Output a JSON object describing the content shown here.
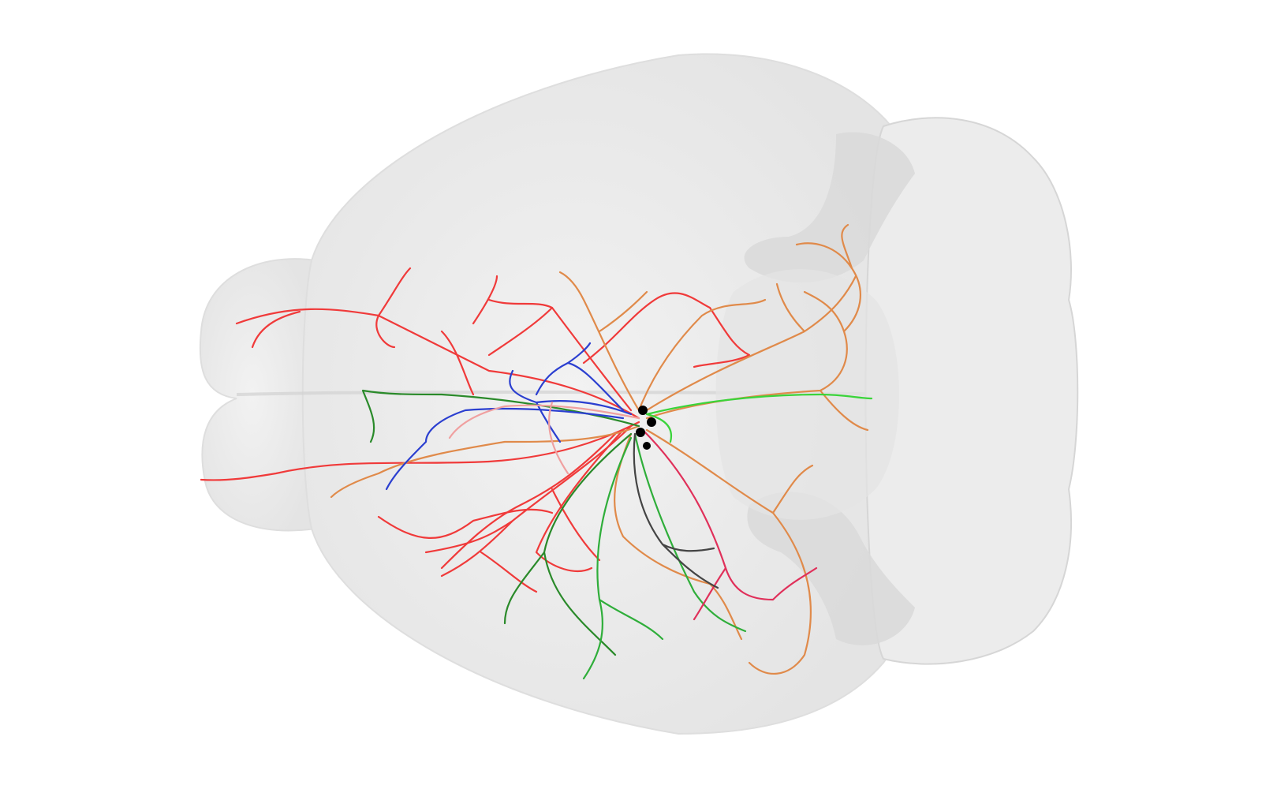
{
  "scene": {
    "background": "#ffffff",
    "brain_fill": "#e9e9e9",
    "brain_edge": "#d8d8d8",
    "inner_region_fill": "#dcdcdc",
    "soma_color": "#000000",
    "soma_count": 4
  },
  "neuron_colors": {
    "red": "#f03a3a",
    "orange": "#e08a4a",
    "green": "#2fae3a",
    "dark_green": "#2a8a2a",
    "bright_green": "#3ad43a",
    "blue": "#2b3fd0",
    "pink": "#f0a0a0",
    "magenta": "#e0305a",
    "dark_gray": "#444444"
  }
}
